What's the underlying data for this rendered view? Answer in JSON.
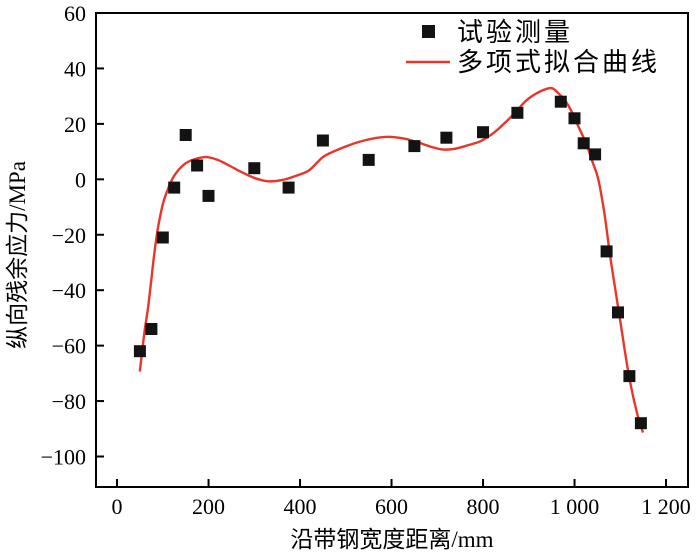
{
  "figure": {
    "background": "#ffffff",
    "axis_color": "#000000",
    "marker_color": "#131313",
    "curve_color": "#e8362b"
  },
  "chart_data": {
    "type": "scatter",
    "title": "",
    "xlabel": "沿带钢宽度距离/mm",
    "ylabel": "纵向残余应力/MPa",
    "xlim": [
      -46,
      1248
    ],
    "ylim": [
      -111,
      60
    ],
    "grid": false,
    "legend_position": "top-center, no frame",
    "x_ticks": {
      "values": [
        0,
        200,
        400,
        600,
        800,
        1000,
        1200
      ],
      "labels": [
        "0",
        "200",
        "400",
        "600",
        "800",
        "1 000",
        "1 200"
      ]
    },
    "y_ticks": {
      "values": [
        60,
        40,
        20,
        0,
        -20,
        -40,
        -60,
        -80,
        -100
      ],
      "labels": [
        "60",
        "40",
        "20",
        "0",
        "−20",
        "−40",
        "−60",
        "−80",
        "−100"
      ]
    },
    "series": [
      {
        "name": "试验测量",
        "type": "scatter",
        "marker": "square",
        "color": "#131313",
        "points": [
          [
            50,
            -62
          ],
          [
            75,
            -54
          ],
          [
            100,
            -21
          ],
          [
            125,
            -3
          ],
          [
            150,
            16
          ],
          [
            175,
            5
          ],
          [
            200,
            -6
          ],
          [
            300,
            4
          ],
          [
            375,
            -3
          ],
          [
            450,
            14
          ],
          [
            550,
            7
          ],
          [
            650,
            12
          ],
          [
            720,
            15
          ],
          [
            800,
            17
          ],
          [
            875,
            24
          ],
          [
            970,
            28
          ],
          [
            1000,
            22
          ],
          [
            1020,
            13
          ],
          [
            1045,
            9
          ],
          [
            1070,
            -26
          ],
          [
            1095,
            -48
          ],
          [
            1120,
            -71
          ],
          [
            1145,
            -88
          ]
        ]
      },
      {
        "name": "多项式拟合曲线",
        "type": "line",
        "color": "#e8362b",
        "points": [
          [
            50,
            -69
          ],
          [
            60,
            -55
          ],
          [
            68,
            -46
          ],
          [
            75,
            -36
          ],
          [
            82,
            -26
          ],
          [
            90,
            -17
          ],
          [
            100,
            -9
          ],
          [
            110,
            -4
          ],
          [
            122,
            0.5
          ],
          [
            135,
            3.5
          ],
          [
            150,
            5.8
          ],
          [
            170,
            7.3
          ],
          [
            195,
            8
          ],
          [
            220,
            7
          ],
          [
            245,
            5
          ],
          [
            270,
            2.8
          ],
          [
            300,
            0.5
          ],
          [
            330,
            -0.7
          ],
          [
            360,
            -0.3
          ],
          [
            390,
            1.2
          ],
          [
            420,
            3.3
          ],
          [
            450,
            8
          ],
          [
            480,
            10.5
          ],
          [
            510,
            12.5
          ],
          [
            540,
            14
          ],
          [
            570,
            15
          ],
          [
            600,
            15.3
          ],
          [
            630,
            14.6
          ],
          [
            660,
            13.2
          ],
          [
            685,
            11.8
          ],
          [
            710,
            10.8
          ],
          [
            735,
            10.9
          ],
          [
            765,
            12.2
          ],
          [
            795,
            13.8
          ],
          [
            825,
            17
          ],
          [
            855,
            21.5
          ],
          [
            875,
            25
          ],
          [
            895,
            28.5
          ],
          [
            920,
            31.3
          ],
          [
            940,
            32.7
          ],
          [
            952,
            32.8
          ],
          [
            965,
            31
          ],
          [
            980,
            28.3
          ],
          [
            995,
            24
          ],
          [
            1010,
            18.5
          ],
          [
            1025,
            13
          ],
          [
            1040,
            6
          ],
          [
            1052,
            0
          ],
          [
            1065,
            -12
          ],
          [
            1080,
            -30
          ],
          [
            1099,
            -50
          ],
          [
            1118,
            -70
          ],
          [
            1136,
            -84
          ],
          [
            1149,
            -91
          ]
        ]
      }
    ]
  }
}
